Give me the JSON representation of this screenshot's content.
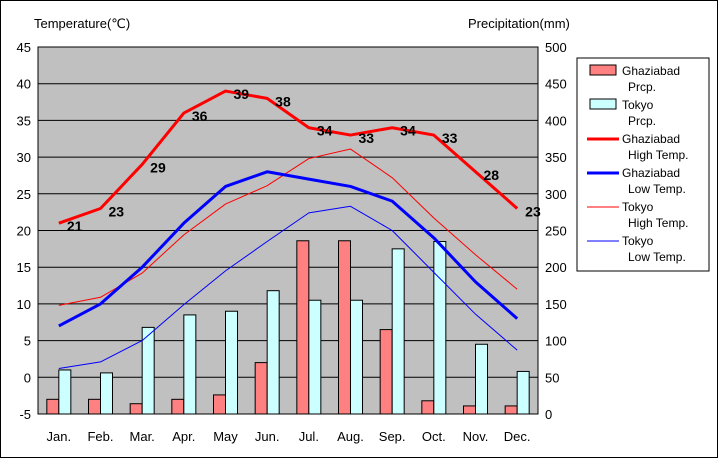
{
  "chart_data": {
    "type": "bar+line",
    "categories": [
      "Jan.",
      "Feb.",
      "Mar.",
      "Apr.",
      "May",
      "Jun.",
      "Jul.",
      "Aug.",
      "Sep.",
      "Oct.",
      "Nov.",
      "Dec."
    ],
    "y_left": {
      "label": "Temperature(℃)",
      "range": [
        -5,
        45
      ],
      "ticks": [
        -5,
        0,
        5,
        10,
        15,
        20,
        25,
        30,
        35,
        40,
        45
      ]
    },
    "y_right": {
      "label": "Precipitation(mm)",
      "range": [
        0,
        500
      ],
      "ticks": [
        0,
        50,
        100,
        150,
        200,
        250,
        300,
        350,
        400,
        450,
        500
      ]
    },
    "grid": "horizontal",
    "plot_background": "#c0c0c0",
    "legend_position": "right",
    "bars": [
      {
        "name": "Ghaziabad Prcp.",
        "legend": [
          "Ghaziabad",
          "Prcp."
        ],
        "color": "#ff8080",
        "values": [
          20,
          20,
          14,
          20,
          26,
          70,
          236,
          236,
          115,
          18,
          11,
          11
        ]
      },
      {
        "name": "Tokyo Prcp.",
        "legend": [
          "Tokyo",
          "Prcp."
        ],
        "color": "#ccffff",
        "values": [
          60,
          56,
          118,
          135,
          140,
          168,
          155,
          155,
          225,
          235,
          95,
          58
        ]
      }
    ],
    "lines": [
      {
        "name": "Ghaziabad High Temp.",
        "legend": [
          "Ghaziabad",
          "High Temp."
        ],
        "color": "#ff0000",
        "width": 3,
        "values": [
          21,
          23,
          29,
          36,
          39,
          38,
          34,
          33,
          34,
          33,
          28,
          23
        ],
        "show_labels": true
      },
      {
        "name": "Ghaziabad Low Temp.",
        "legend": [
          "Ghaziabad",
          "Low Temp."
        ],
        "color": "#0000ff",
        "width": 3,
        "values": [
          7,
          10,
          15,
          21,
          26,
          28,
          27,
          26,
          24,
          19,
          13,
          8
        ]
      },
      {
        "name": "Tokyo High Temp.",
        "legend": [
          "Tokyo",
          "High Temp."
        ],
        "color": "#ff0000",
        "width": 1,
        "values": [
          9.8,
          10.9,
          14.2,
          19.4,
          23.6,
          26.1,
          29.8,
          31.1,
          27.2,
          21.7,
          16.7,
          12.0
        ]
      },
      {
        "name": "Tokyo Low Temp.",
        "legend": [
          "Tokyo",
          "Low Temp."
        ],
        "color": "#0000ff",
        "width": 1,
        "values": [
          1.2,
          2.1,
          5.0,
          9.9,
          14.5,
          18.5,
          22.4,
          23.3,
          20.0,
          14.3,
          8.6,
          3.7
        ]
      }
    ]
  }
}
